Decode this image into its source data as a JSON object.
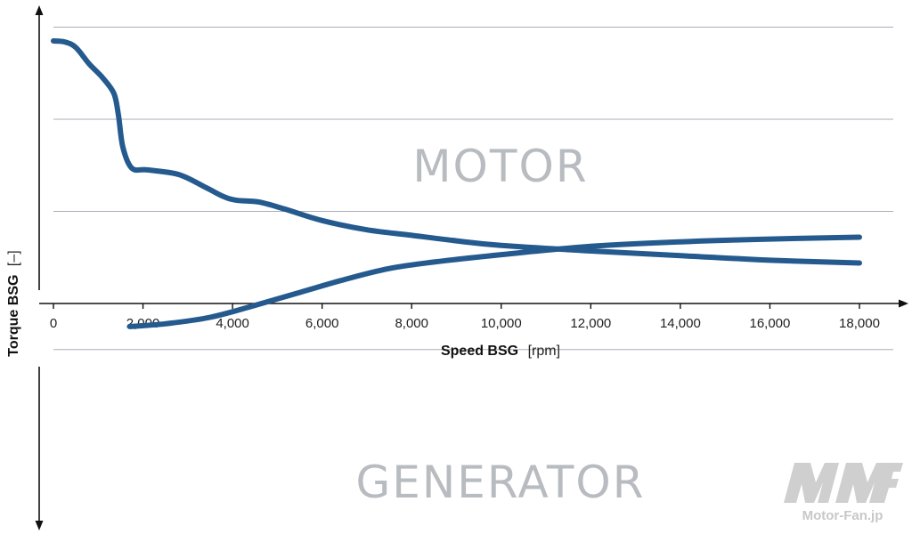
{
  "chart_data": {
    "type": "line",
    "xlabel": "Speed BSG",
    "xlabel_unit": "[rpm]",
    "ylabel": "Torque BSG",
    "ylabel_unit": "[–]",
    "xlim": [
      0,
      18000
    ],
    "x_ticks": [
      "0",
      "2,000",
      "4,000",
      "6,000",
      "8,000",
      "10,000",
      "12,000",
      "14,000",
      "16,000",
      "18,000"
    ],
    "grid": true,
    "line_color": "#245a8e",
    "series": [
      {
        "region": "motor",
        "x": [
          0,
          250,
          500,
          800,
          1100,
          1350,
          1450,
          1550,
          1750,
          2100,
          2800,
          3400,
          3800,
          4100,
          4600,
          5200,
          6000,
          7000,
          8000,
          9000,
          10000,
          12000,
          14000,
          16000,
          18000
        ],
        "y": [
          2.85,
          2.84,
          2.78,
          2.6,
          2.45,
          2.28,
          2.05,
          1.7,
          1.47,
          1.45,
          1.4,
          1.26,
          1.16,
          1.12,
          1.1,
          1.02,
          0.9,
          0.8,
          0.74,
          0.68,
          0.63,
          0.57,
          0.52,
          0.47,
          0.44
        ]
      },
      {
        "region": "generator",
        "x": [
          1700,
          2500,
          3500,
          4500,
          5500,
          6500,
          7500,
          8500,
          10000,
          12000,
          14000,
          16000,
          18000
        ],
        "y": [
          -0.25,
          -0.22,
          -0.15,
          -0.02,
          0.12,
          0.26,
          0.38,
          0.45,
          0.53,
          0.62,
          0.67,
          0.7,
          0.72
        ]
      }
    ]
  },
  "regions": {
    "motor": "MOTOR",
    "generator": "GENERATOR"
  },
  "watermark": {
    "text": "Motor-Fan.jp"
  }
}
